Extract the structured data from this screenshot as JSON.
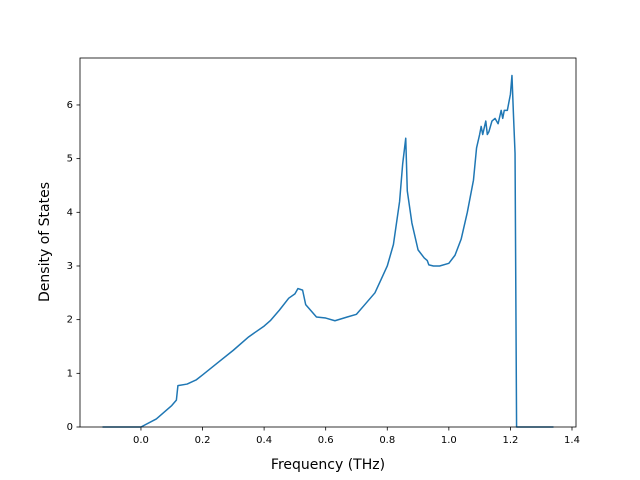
{
  "chart_data": {
    "type": "line",
    "xlabel": "Frequency (THz)",
    "ylabel": "Density of States",
    "series": [
      {
        "color": "#1f77b4",
        "x": [
          -0.125,
          0.0,
          0.05,
          0.1,
          0.115,
          0.12,
          0.15,
          0.18,
          0.2,
          0.25,
          0.3,
          0.35,
          0.4,
          0.42,
          0.45,
          0.48,
          0.5,
          0.51,
          0.525,
          0.535,
          0.57,
          0.6,
          0.63,
          0.67,
          0.7,
          0.73,
          0.76,
          0.78,
          0.8,
          0.82,
          0.84,
          0.85,
          0.86,
          0.865,
          0.88,
          0.9,
          0.92,
          0.93,
          0.935,
          0.95,
          0.97,
          1.0,
          1.02,
          1.04,
          1.06,
          1.08,
          1.09,
          1.1,
          1.105,
          1.11,
          1.12,
          1.125,
          1.13,
          1.14,
          1.15,
          1.16,
          1.17,
          1.175,
          1.18,
          1.19,
          1.2,
          1.205,
          1.21,
          1.215,
          1.22,
          1.34
        ],
        "values": [
          0,
          0,
          0.15,
          0.4,
          0.5,
          0.77,
          0.8,
          0.88,
          0.97,
          1.2,
          1.43,
          1.68,
          1.88,
          1.98,
          2.18,
          2.4,
          2.48,
          2.58,
          2.55,
          2.28,
          2.05,
          2.03,
          1.98,
          2.05,
          2.1,
          2.3,
          2.5,
          2.75,
          3.0,
          3.4,
          4.2,
          4.9,
          5.38,
          4.4,
          3.8,
          3.3,
          3.15,
          3.1,
          3.02,
          3.0,
          3.0,
          3.05,
          3.2,
          3.5,
          4.0,
          4.6,
          5.2,
          5.45,
          5.6,
          5.45,
          5.7,
          5.45,
          5.5,
          5.7,
          5.75,
          5.65,
          5.9,
          5.75,
          5.9,
          5.9,
          6.2,
          6.55,
          5.8,
          5.1,
          0,
          0
        ]
      }
    ],
    "xlim": [
      -0.198,
      1.413
    ],
    "ylim": [
      0,
      6.875
    ],
    "xticks": [
      {
        "value": 0,
        "label": "0.0"
      },
      0.2,
      0.4,
      0.6,
      0.8,
      {
        "value": 1,
        "label": "1.0"
      },
      1.2,
      1.4
    ],
    "yticks": [
      0,
      1,
      2,
      3,
      4,
      5,
      6
    ]
  }
}
